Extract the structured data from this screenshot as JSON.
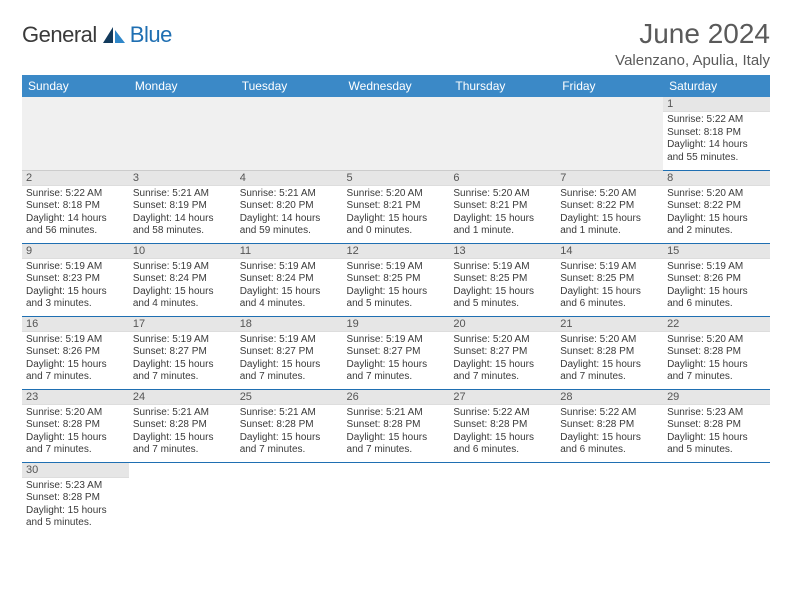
{
  "logo": {
    "general": "General",
    "blue": "Blue"
  },
  "title": "June 2024",
  "location": "Valenzano, Apulia, Italy",
  "colors": {
    "header_bg": "#3b89c7",
    "header_fg": "#ffffff",
    "row_border": "#1f6fb2",
    "daynum_bg": "#e6e6e6",
    "logo_blue": "#1f6fb2",
    "text": "#3a3a3a"
  },
  "day_headers": [
    "Sunday",
    "Monday",
    "Tuesday",
    "Wednesday",
    "Thursday",
    "Friday",
    "Saturday"
  ],
  "weeks": [
    [
      null,
      null,
      null,
      null,
      null,
      null,
      {
        "n": "1",
        "sr": "5:22 AM",
        "ss": "8:18 PM",
        "dl": "14 hours and 55 minutes."
      }
    ],
    [
      {
        "n": "2",
        "sr": "5:22 AM",
        "ss": "8:18 PM",
        "dl": "14 hours and 56 minutes."
      },
      {
        "n": "3",
        "sr": "5:21 AM",
        "ss": "8:19 PM",
        "dl": "14 hours and 58 minutes."
      },
      {
        "n": "4",
        "sr": "5:21 AM",
        "ss": "8:20 PM",
        "dl": "14 hours and 59 minutes."
      },
      {
        "n": "5",
        "sr": "5:20 AM",
        "ss": "8:21 PM",
        "dl": "15 hours and 0 minutes."
      },
      {
        "n": "6",
        "sr": "5:20 AM",
        "ss": "8:21 PM",
        "dl": "15 hours and 1 minute."
      },
      {
        "n": "7",
        "sr": "5:20 AM",
        "ss": "8:22 PM",
        "dl": "15 hours and 1 minute."
      },
      {
        "n": "8",
        "sr": "5:20 AM",
        "ss": "8:22 PM",
        "dl": "15 hours and 2 minutes."
      }
    ],
    [
      {
        "n": "9",
        "sr": "5:19 AM",
        "ss": "8:23 PM",
        "dl": "15 hours and 3 minutes."
      },
      {
        "n": "10",
        "sr": "5:19 AM",
        "ss": "8:24 PM",
        "dl": "15 hours and 4 minutes."
      },
      {
        "n": "11",
        "sr": "5:19 AM",
        "ss": "8:24 PM",
        "dl": "15 hours and 4 minutes."
      },
      {
        "n": "12",
        "sr": "5:19 AM",
        "ss": "8:25 PM",
        "dl": "15 hours and 5 minutes."
      },
      {
        "n": "13",
        "sr": "5:19 AM",
        "ss": "8:25 PM",
        "dl": "15 hours and 5 minutes."
      },
      {
        "n": "14",
        "sr": "5:19 AM",
        "ss": "8:25 PM",
        "dl": "15 hours and 6 minutes."
      },
      {
        "n": "15",
        "sr": "5:19 AM",
        "ss": "8:26 PM",
        "dl": "15 hours and 6 minutes."
      }
    ],
    [
      {
        "n": "16",
        "sr": "5:19 AM",
        "ss": "8:26 PM",
        "dl": "15 hours and 7 minutes."
      },
      {
        "n": "17",
        "sr": "5:19 AM",
        "ss": "8:27 PM",
        "dl": "15 hours and 7 minutes."
      },
      {
        "n": "18",
        "sr": "5:19 AM",
        "ss": "8:27 PM",
        "dl": "15 hours and 7 minutes."
      },
      {
        "n": "19",
        "sr": "5:19 AM",
        "ss": "8:27 PM",
        "dl": "15 hours and 7 minutes."
      },
      {
        "n": "20",
        "sr": "5:20 AM",
        "ss": "8:27 PM",
        "dl": "15 hours and 7 minutes."
      },
      {
        "n": "21",
        "sr": "5:20 AM",
        "ss": "8:28 PM",
        "dl": "15 hours and 7 minutes."
      },
      {
        "n": "22",
        "sr": "5:20 AM",
        "ss": "8:28 PM",
        "dl": "15 hours and 7 minutes."
      }
    ],
    [
      {
        "n": "23",
        "sr": "5:20 AM",
        "ss": "8:28 PM",
        "dl": "15 hours and 7 minutes."
      },
      {
        "n": "24",
        "sr": "5:21 AM",
        "ss": "8:28 PM",
        "dl": "15 hours and 7 minutes."
      },
      {
        "n": "25",
        "sr": "5:21 AM",
        "ss": "8:28 PM",
        "dl": "15 hours and 7 minutes."
      },
      {
        "n": "26",
        "sr": "5:21 AM",
        "ss": "8:28 PM",
        "dl": "15 hours and 7 minutes."
      },
      {
        "n": "27",
        "sr": "5:22 AM",
        "ss": "8:28 PM",
        "dl": "15 hours and 6 minutes."
      },
      {
        "n": "28",
        "sr": "5:22 AM",
        "ss": "8:28 PM",
        "dl": "15 hours and 6 minutes."
      },
      {
        "n": "29",
        "sr": "5:23 AM",
        "ss": "8:28 PM",
        "dl": "15 hours and 5 minutes."
      }
    ],
    [
      {
        "n": "30",
        "sr": "5:23 AM",
        "ss": "8:28 PM",
        "dl": "15 hours and 5 minutes."
      },
      null,
      null,
      null,
      null,
      null,
      null
    ]
  ],
  "labels": {
    "sunrise": "Sunrise: ",
    "sunset": "Sunset: ",
    "daylight": "Daylight: "
  }
}
